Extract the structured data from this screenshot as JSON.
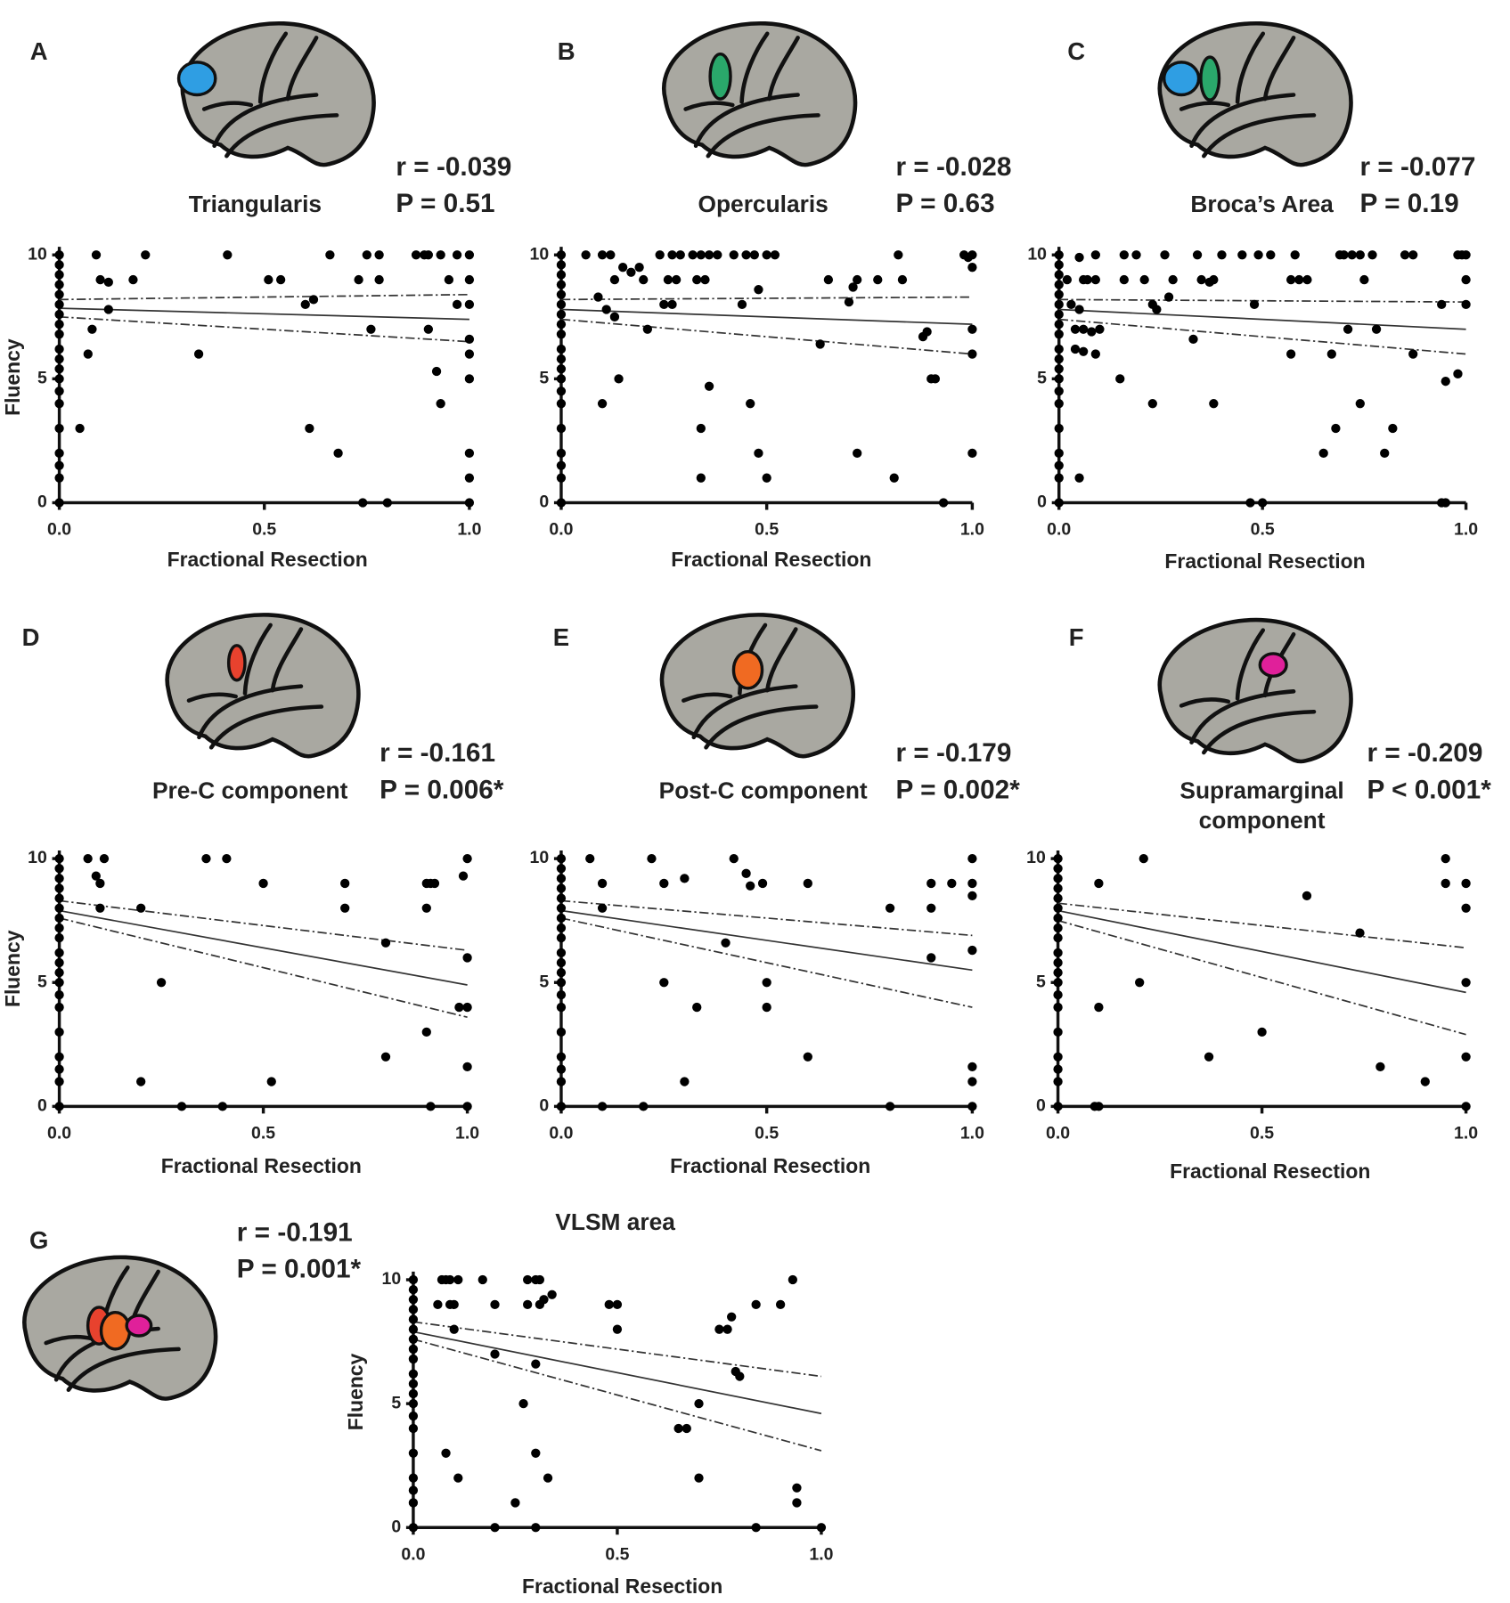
{
  "chart_data": [
    {
      "type": "scatter",
      "label": "A",
      "title": [
        "Triangularis"
      ],
      "r_label": "r = -0.039",
      "p_label": "P = 0.51",
      "x_label": "Fractional Resection",
      "y_label": "Fluency",
      "region_colors": [
        "#2f9ee3"
      ],
      "xlim": [
        0,
        1
      ],
      "ylim": [
        0,
        10
      ],
      "xticks": [
        {
          "value": 0,
          "label": "0.0"
        },
        {
          "value": 0.5,
          "label": "0.5"
        },
        {
          "value": 1,
          "label": "1.0"
        }
      ],
      "yticks": [
        0,
        5,
        10
      ],
      "x": [
        0,
        0,
        0,
        0,
        0,
        0,
        0,
        0,
        0,
        0,
        0,
        0,
        0,
        0,
        0,
        0,
        0,
        0,
        0,
        0,
        0.05,
        0.07,
        0.08,
        0.09,
        0.1,
        0.12,
        0.12,
        0.18,
        0.21,
        0.34,
        0.41,
        0.51,
        0.54,
        0.6,
        0.61,
        0.62,
        0.66,
        0.68,
        0.73,
        0.74,
        0.75,
        0.76,
        0.78,
        0.78,
        0.8,
        0.87,
        0.89,
        0.9,
        0.9,
        0.92,
        0.93,
        0.93,
        0.95,
        0.97,
        0.97,
        1,
        1,
        1,
        1,
        1,
        1,
        1,
        1,
        1
      ],
      "values": [
        10,
        9.6,
        9.2,
        8.8,
        8.4,
        8,
        7.6,
        7.2,
        6.8,
        6.2,
        5.8,
        5.4,
        5,
        4.5,
        4,
        3,
        2,
        1.5,
        1,
        0,
        3,
        6,
        7,
        10,
        9,
        8.9,
        7.8,
        9,
        10,
        6,
        10,
        9,
        9,
        8,
        3,
        8.2,
        10,
        2,
        9,
        0,
        10,
        7,
        10,
        9,
        0,
        10,
        10,
        7,
        10,
        5.3,
        4,
        10,
        9,
        10,
        8,
        10,
        9,
        8,
        6.6,
        6,
        5,
        2,
        1,
        0
      ],
      "fit": {
        "x": [
          0,
          1
        ],
        "values": [
          7.85,
          7.4
        ]
      },
      "ci_upper": {
        "x": [
          0,
          1
        ],
        "values": [
          8.2,
          8.4
        ]
      },
      "ci_lower": {
        "x": [
          0,
          1
        ],
        "values": [
          7.5,
          6.5
        ]
      }
    },
    {
      "type": "scatter",
      "label": "B",
      "title": [
        "Opercularis"
      ],
      "r_label": "r = -0.028",
      "p_label": "P = 0.63",
      "x_label": "Fractional Resection",
      "region_colors": [
        "#2aa86b"
      ],
      "xlim": [
        0,
        1
      ],
      "ylim": [
        0,
        10
      ],
      "xticks": [
        {
          "value": 0,
          "label": "0.0"
        },
        {
          "value": 0.5,
          "label": "0.5"
        },
        {
          "value": 1,
          "label": "1.0"
        }
      ],
      "yticks": [
        0,
        5,
        10
      ],
      "x": [
        0,
        0,
        0,
        0,
        0,
        0,
        0,
        0,
        0,
        0,
        0,
        0,
        0,
        0,
        0,
        0,
        0,
        0,
        0,
        0,
        0.06,
        0.09,
        0.1,
        0.1,
        0.11,
        0.12,
        0.13,
        0.13,
        0.14,
        0.15,
        0.17,
        0.19,
        0.2,
        0.21,
        0.24,
        0.25,
        0.26,
        0.27,
        0.27,
        0.28,
        0.29,
        0.32,
        0.33,
        0.34,
        0.34,
        0.34,
        0.35,
        0.36,
        0.36,
        0.38,
        0.42,
        0.44,
        0.45,
        0.46,
        0.47,
        0.48,
        0.48,
        0.5,
        0.5,
        0.52,
        0.63,
        0.65,
        0.7,
        0.71,
        0.72,
        0.72,
        0.77,
        0.81,
        0.82,
        0.83,
        0.88,
        0.89,
        0.9,
        0.91,
        0.93,
        0.98,
        0.99,
        1,
        1,
        1,
        1,
        1
      ],
      "values": [
        10,
        9.6,
        9.2,
        8.8,
        8.4,
        8,
        7.6,
        7.2,
        6.8,
        6.2,
        5.8,
        5.4,
        5,
        4.5,
        4,
        3,
        2,
        1.5,
        1,
        0,
        10,
        8.3,
        10,
        4,
        7.8,
        10,
        7.5,
        9,
        5,
        9.5,
        9.3,
        9.5,
        9,
        7,
        10,
        8,
        9,
        8,
        10,
        9,
        10,
        10,
        9,
        3,
        1,
        10,
        9,
        4.7,
        10,
        10,
        10,
        8,
        10,
        4,
        10,
        2,
        8.6,
        1,
        10,
        10,
        6.4,
        9,
        8.1,
        8.7,
        2,
        9,
        9,
        1,
        10,
        9,
        6.7,
        6.9,
        5,
        5,
        0,
        10,
        9.9,
        9.5,
        7,
        6,
        2,
        10
      ],
      "fit": {
        "x": [
          0,
          1
        ],
        "values": [
          7.8,
          7.2
        ]
      },
      "ci_upper": {
        "x": [
          0,
          1
        ],
        "values": [
          8.2,
          8.3
        ]
      },
      "ci_lower": {
        "x": [
          0,
          1
        ],
        "values": [
          7.4,
          6
        ]
      }
    },
    {
      "type": "scatter",
      "label": "C",
      "title": [
        "Broca’s Area"
      ],
      "r_label": "r = -0.077",
      "p_label": "P = 0.19",
      "x_label": "Fractional Resection",
      "region_colors": [
        "#2f9ee3",
        "#2aa86b"
      ],
      "xlim": [
        0,
        1
      ],
      "ylim": [
        0,
        10
      ],
      "xticks": [
        {
          "value": 0,
          "label": "0.0"
        },
        {
          "value": 0.5,
          "label": "0.5"
        },
        {
          "value": 1,
          "label": "1.0"
        }
      ],
      "yticks": [
        0,
        5,
        10
      ],
      "x": [
        0,
        0,
        0,
        0,
        0,
        0,
        0,
        0,
        0,
        0,
        0,
        0,
        0,
        0,
        0,
        0,
        0,
        0,
        0,
        0,
        0.02,
        0.03,
        0.04,
        0.04,
        0.05,
        0.05,
        0.05,
        0.06,
        0.06,
        0.06,
        0.07,
        0.08,
        0.09,
        0.09,
        0.09,
        0.1,
        0.15,
        0.16,
        0.16,
        0.19,
        0.21,
        0.23,
        0.23,
        0.24,
        0.26,
        0.27,
        0.28,
        0.33,
        0.34,
        0.35,
        0.37,
        0.38,
        0.38,
        0.4,
        0.45,
        0.47,
        0.48,
        0.49,
        0.5,
        0.52,
        0.57,
        0.57,
        0.58,
        0.59,
        0.61,
        0.65,
        0.67,
        0.68,
        0.69,
        0.7,
        0.71,
        0.72,
        0.74,
        0.74,
        0.75,
        0.77,
        0.78,
        0.8,
        0.82,
        0.85,
        0.87,
        0.87,
        0.94,
        0.94,
        0.95,
        0.95,
        0.98,
        0.98,
        0.99,
        1,
        1,
        1
      ],
      "values": [
        10,
        9.6,
        9.2,
        8.8,
        8.4,
        8,
        7.6,
        7.2,
        6.8,
        6.2,
        5.8,
        5.4,
        5,
        4.5,
        4,
        3,
        2,
        1.5,
        1,
        0,
        9,
        8,
        7,
        6.2,
        9.9,
        7.8,
        1,
        9,
        7,
        6.1,
        9,
        6.9,
        9,
        10,
        6,
        7,
        5,
        10,
        9,
        10,
        9,
        4,
        8,
        7.8,
        10,
        8.3,
        9,
        6.6,
        10,
        9,
        8.9,
        4,
        9,
        10,
        10,
        0,
        8,
        10,
        0,
        10,
        9,
        6,
        10,
        9,
        9,
        2,
        6,
        3,
        10,
        10,
        7,
        10,
        4,
        10,
        9,
        10,
        7,
        2,
        3,
        10,
        10,
        6,
        8,
        0,
        0,
        4.9,
        5.2,
        10,
        10,
        8,
        9,
        10
      ],
      "fit": {
        "x": [
          0,
          1
        ],
        "values": [
          7.8,
          7
        ]
      },
      "ci_upper": {
        "x": [
          0,
          1
        ],
        "values": [
          8.2,
          8.1
        ]
      },
      "ci_lower": {
        "x": [
          0,
          1
        ],
        "values": [
          7.4,
          6
        ]
      }
    },
    {
      "type": "scatter",
      "label": "D",
      "title": [
        "Pre-C component"
      ],
      "r_label": "r = -0.161",
      "p_label": "P = 0.006*",
      "x_label": "Fractional Resection",
      "y_label": "Fluency",
      "region_colors": [
        "#e8422e"
      ],
      "xlim": [
        0,
        1
      ],
      "ylim": [
        0,
        10
      ],
      "xticks": [
        {
          "value": 0,
          "label": "0.0"
        },
        {
          "value": 0.5,
          "label": "0.5"
        },
        {
          "value": 1,
          "label": "1.0"
        }
      ],
      "yticks": [
        0,
        5,
        10
      ],
      "x": [
        0,
        0,
        0,
        0,
        0,
        0,
        0,
        0,
        0,
        0,
        0,
        0,
        0,
        0,
        0,
        0,
        0,
        0,
        0,
        0,
        0.07,
        0.09,
        0.1,
        0.1,
        0.11,
        0.2,
        0.2,
        0.25,
        0.3,
        0.36,
        0.4,
        0.41,
        0.5,
        0.52,
        0.7,
        0.7,
        0.8,
        0.8,
        0.9,
        0.9,
        0.9,
        0.91,
        0.91,
        0.92,
        0.98,
        0.99,
        1,
        1,
        1,
        1,
        1
      ],
      "values": [
        10,
        9.6,
        9.2,
        8.8,
        8.4,
        8,
        7.6,
        7.2,
        6.8,
        6.2,
        5.8,
        5.4,
        5,
        4.5,
        4,
        3,
        2,
        1.5,
        1,
        0,
        10,
        9.3,
        9,
        8,
        10,
        8,
        1,
        5,
        0,
        10,
        0,
        10,
        9,
        1,
        9,
        8,
        6.6,
        2,
        3,
        9,
        8,
        0,
        9,
        9,
        4,
        9.3,
        10,
        6,
        4,
        1.6,
        0
      ],
      "fit": {
        "x": [
          0,
          1
        ],
        "values": [
          7.9,
          4.9
        ]
      },
      "ci_upper": {
        "x": [
          0,
          1
        ],
        "values": [
          8.3,
          6.3
        ]
      },
      "ci_lower": {
        "x": [
          0,
          1
        ],
        "values": [
          7.6,
          3.6
        ]
      }
    },
    {
      "type": "scatter",
      "label": "E",
      "title": [
        "Post-C component"
      ],
      "r_label": "r = -0.179",
      "p_label": "P = 0.002*",
      "x_label": "Fractional Resection",
      "region_colors": [
        "#f06a22"
      ],
      "xlim": [
        0,
        1
      ],
      "ylim": [
        0,
        10
      ],
      "xticks": [
        {
          "value": 0,
          "label": "0.0"
        },
        {
          "value": 0.5,
          "label": "0.5"
        },
        {
          "value": 1,
          "label": "1.0"
        }
      ],
      "yticks": [
        0,
        5,
        10
      ],
      "x": [
        0,
        0,
        0,
        0,
        0,
        0,
        0,
        0,
        0,
        0,
        0,
        0,
        0,
        0,
        0,
        0,
        0,
        0,
        0,
        0,
        0.07,
        0.1,
        0.1,
        0.1,
        0.2,
        0.22,
        0.25,
        0.25,
        0.3,
        0.3,
        0.33,
        0.4,
        0.42,
        0.45,
        0.46,
        0.49,
        0.5,
        0.5,
        0.6,
        0.6,
        0.8,
        0.8,
        0.9,
        0.9,
        0.9,
        0.95,
        1,
        1,
        1,
        1,
        1,
        1,
        1
      ],
      "values": [
        10,
        9.6,
        9.2,
        8.8,
        8.4,
        8,
        7.6,
        7.2,
        6.8,
        6.2,
        5.8,
        5.4,
        5,
        4.5,
        4,
        3,
        2,
        1.5,
        1,
        0,
        10,
        9,
        8,
        0,
        0,
        10,
        9,
        5,
        9.2,
        1,
        4,
        6.6,
        10,
        9.4,
        8.9,
        9,
        5,
        4,
        9,
        2,
        8,
        0,
        9,
        8,
        6,
        9,
        10,
        9,
        8.5,
        6.3,
        1.6,
        1,
        0
      ],
      "fit": {
        "x": [
          0,
          1
        ],
        "values": [
          7.9,
          5.5
        ]
      },
      "ci_upper": {
        "x": [
          0,
          1
        ],
        "values": [
          8.3,
          6.9
        ]
      },
      "ci_lower": {
        "x": [
          0,
          1
        ],
        "values": [
          7.6,
          4
        ]
      }
    },
    {
      "type": "scatter",
      "label": "F",
      "title": [
        "Supramarginal",
        "component"
      ],
      "r_label": "r = -0.209",
      "p_label": "P < 0.001*",
      "x_label": "Fractional Resection",
      "region_colors": [
        "#e0209a"
      ],
      "xlim": [
        0,
        1
      ],
      "ylim": [
        0,
        10
      ],
      "xticks": [
        {
          "value": 0,
          "label": "0.0"
        },
        {
          "value": 0.5,
          "label": "0.5"
        },
        {
          "value": 1,
          "label": "1.0"
        }
      ],
      "yticks": [
        0,
        5,
        10
      ],
      "x": [
        0,
        0,
        0,
        0,
        0,
        0,
        0,
        0,
        0,
        0,
        0,
        0,
        0,
        0,
        0,
        0,
        0,
        0,
        0,
        0,
        0.09,
        0.1,
        0.1,
        0.1,
        0.2,
        0.21,
        0.37,
        0.5,
        0.61,
        0.74,
        0.79,
        0.9,
        0.95,
        0.95,
        1,
        1,
        1,
        1,
        1
      ],
      "values": [
        10,
        9.6,
        9.2,
        8.8,
        8.4,
        8,
        7.6,
        7.2,
        6.8,
        6.2,
        5.8,
        5.4,
        5,
        4.5,
        4,
        3,
        2,
        1.5,
        1,
        0,
        0,
        0,
        9,
        4,
        5,
        10,
        2,
        3,
        8.5,
        7,
        1.6,
        1,
        10,
        9,
        9,
        8,
        5,
        2,
        0
      ],
      "fit": {
        "x": [
          0,
          1
        ],
        "values": [
          7.9,
          4.6
        ]
      },
      "ci_upper": {
        "x": [
          0,
          1
        ],
        "values": [
          8.2,
          6.4
        ]
      },
      "ci_lower": {
        "x": [
          0,
          1
        ],
        "values": [
          7.5,
          2.9
        ]
      }
    },
    {
      "type": "scatter",
      "label": "G",
      "title": [
        "VLSM area"
      ],
      "r_label": "r = -0.191",
      "p_label": "P = 0.001*",
      "x_label": "Fractional Resection",
      "y_label": "Fluency",
      "region_colors": [
        "#e8422e",
        "#f06a22",
        "#e0209a"
      ],
      "xlim": [
        0,
        1
      ],
      "ylim": [
        0,
        10
      ],
      "xticks": [
        {
          "value": 0,
          "label": "0.0"
        },
        {
          "value": 0.5,
          "label": "0.5"
        },
        {
          "value": 1,
          "label": "1.0"
        }
      ],
      "yticks": [
        0,
        5,
        10
      ],
      "x": [
        0,
        0,
        0,
        0,
        0,
        0,
        0,
        0,
        0,
        0,
        0,
        0,
        0,
        0,
        0,
        0,
        0,
        0,
        0,
        0,
        0.06,
        0.07,
        0.08,
        0.08,
        0.09,
        0.09,
        0.1,
        0.1,
        0.11,
        0.11,
        0.17,
        0.2,
        0.2,
        0.2,
        0.25,
        0.27,
        0.28,
        0.28,
        0.3,
        0.3,
        0.3,
        0.3,
        0.31,
        0.31,
        0.32,
        0.33,
        0.34,
        0.48,
        0.5,
        0.5,
        0.65,
        0.67,
        0.7,
        0.7,
        0.75,
        0.77,
        0.78,
        0.79,
        0.8,
        0.84,
        0.84,
        0.9,
        0.93,
        0.94,
        0.94,
        1
      ],
      "values": [
        10,
        9.6,
        9.2,
        8.8,
        8.4,
        8,
        7.6,
        7.2,
        6.8,
        6.2,
        5.8,
        5.4,
        5,
        4.5,
        4,
        3,
        2,
        1.5,
        1,
        0,
        9,
        10,
        3,
        10,
        9,
        10,
        8,
        9,
        10,
        2,
        10,
        9,
        7,
        0,
        1,
        5,
        9,
        10,
        10,
        6.6,
        3,
        0,
        9,
        10,
        9.2,
        2,
        9.4,
        9,
        9,
        8,
        4,
        4,
        5,
        2,
        8,
        8,
        8.5,
        6.3,
        6.1,
        9,
        0,
        9,
        10,
        1.6,
        1,
        0
      ],
      "fit": {
        "x": [
          0,
          1
        ],
        "values": [
          7.9,
          4.6
        ]
      },
      "ci_upper": {
        "x": [
          0,
          1
        ],
        "values": [
          8.3,
          6.1
        ]
      },
      "ci_lower": {
        "x": [
          0,
          1
        ],
        "values": [
          7.6,
          3.1
        ]
      }
    }
  ]
}
